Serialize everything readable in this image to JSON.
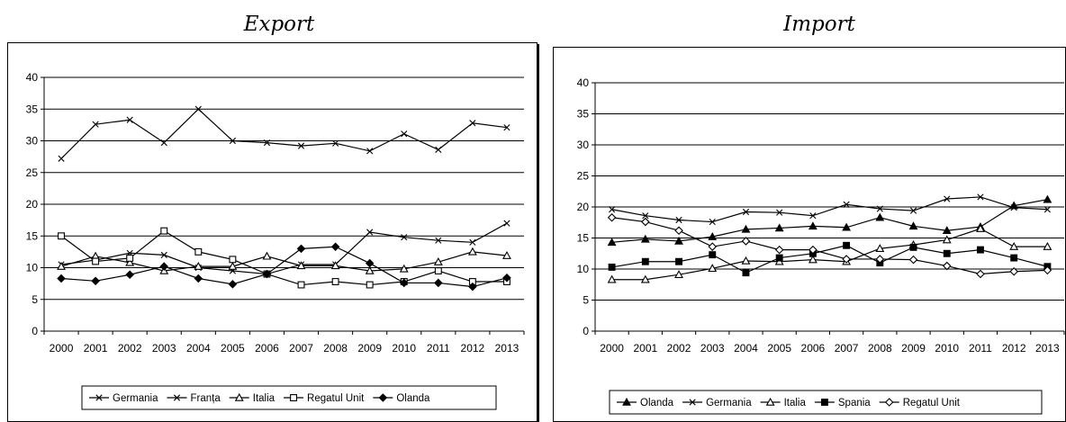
{
  "chart_data": [
    {
      "type": "line",
      "title": "Export",
      "x": [
        "2000",
        "2001",
        "2002",
        "2003",
        "2004",
        "2005",
        "2006",
        "2007",
        "2008",
        "2009",
        "2010",
        "2011",
        "2012",
        "2013"
      ],
      "ylim": [
        0,
        40
      ],
      "yticks": [
        "0",
        "5",
        "10",
        "15",
        "20",
        "25",
        "30",
        "35",
        "40"
      ],
      "grid": true,
      "legend_position": "bottom",
      "series": [
        {
          "name": "Germania",
          "marker": "x",
          "values": [
            27.2,
            32.6,
            33.3,
            29.7,
            35.0,
            30.0,
            29.7,
            29.2,
            29.6,
            28.4,
            31.1,
            28.6,
            32.8,
            32.1
          ]
        },
        {
          "name": "Franța",
          "marker": "x",
          "values": [
            10.5,
            11.2,
            12.3,
            12.0,
            10.0,
            9.5,
            9.0,
            10.5,
            10.5,
            15.6,
            14.8,
            14.3,
            14.0,
            17.0
          ]
        },
        {
          "name": "Italia",
          "marker": "triangle-open",
          "values": [
            10.2,
            11.8,
            10.8,
            9.5,
            10.2,
            10.2,
            11.8,
            10.3,
            10.3,
            9.5,
            9.8,
            10.9,
            12.5,
            11.9
          ]
        },
        {
          "name": "Regatul Unit",
          "marker": "square-open",
          "values": [
            15.0,
            11.0,
            11.5,
            15.8,
            12.5,
            11.3,
            9.0,
            7.3,
            7.8,
            7.3,
            7.8,
            9.5,
            7.8,
            7.8
          ]
        },
        {
          "name": "Olanda",
          "marker": "diamond-filled",
          "values": [
            8.3,
            7.9,
            8.9,
            10.2,
            8.3,
            7.4,
            9.0,
            13.0,
            13.3,
            10.7,
            7.6,
            7.6,
            7.0,
            8.4
          ]
        }
      ]
    },
    {
      "type": "line",
      "title": "Import",
      "x": [
        "2000",
        "2001",
        "2002",
        "2003",
        "2004",
        "2005",
        "2006",
        "2007",
        "2008",
        "2009",
        "2010",
        "2011",
        "2012",
        "2013"
      ],
      "ylim": [
        0,
        40
      ],
      "yticks": [
        "0",
        "5",
        "10",
        "15",
        "20",
        "25",
        "30",
        "35",
        "40"
      ],
      "grid": true,
      "legend_position": "bottom",
      "series": [
        {
          "name": "Olanda",
          "marker": "triangle-filled",
          "values": [
            14.3,
            14.8,
            14.5,
            15.2,
            16.4,
            16.6,
            16.9,
            16.7,
            18.3,
            16.9,
            16.2,
            16.8,
            20.2,
            21.2
          ]
        },
        {
          "name": "Germania",
          "marker": "x",
          "values": [
            19.6,
            18.6,
            17.9,
            17.6,
            19.2,
            19.1,
            18.6,
            20.4,
            19.7,
            19.4,
            21.3,
            21.6,
            19.9,
            19.6
          ]
        },
        {
          "name": "Italia",
          "marker": "triangle-open",
          "values": [
            8.3,
            8.3,
            9.1,
            10.1,
            11.3,
            11.2,
            11.5,
            11.2,
            13.3,
            13.9,
            14.7,
            16.5,
            13.6,
            13.6
          ]
        },
        {
          "name": "Spania",
          "marker": "square-filled",
          "values": [
            10.3,
            11.2,
            11.2,
            12.3,
            9.4,
            11.8,
            12.5,
            13.8,
            11.0,
            13.5,
            12.5,
            13.1,
            11.8,
            10.4
          ]
        },
        {
          "name": "Regatul Unit",
          "marker": "diamond-open",
          "values": [
            18.3,
            17.6,
            16.2,
            13.6,
            14.5,
            13.1,
            13.1,
            11.6,
            11.6,
            11.5,
            10.5,
            9.2,
            9.6,
            9.8
          ]
        }
      ]
    }
  ]
}
